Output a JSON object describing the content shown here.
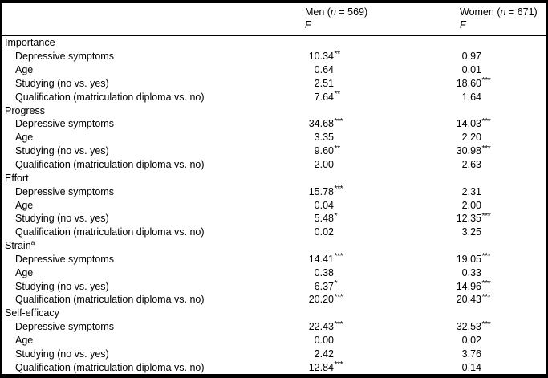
{
  "table": {
    "header": {
      "columns": [
        {
          "group_prefix": "Men (",
          "n_symbol": "n",
          "n_suffix": " = 569)",
          "stat_label": "F"
        },
        {
          "group_prefix": "Women (",
          "n_symbol": "n",
          "n_suffix": " = 671)",
          "stat_label": "F"
        }
      ]
    },
    "sections": [
      {
        "name": "Importance",
        "superscript": "",
        "rows": [
          {
            "label": "Depressive symptoms",
            "men": "10.34",
            "men_sig": "**",
            "women": "0.97",
            "women_sig": ""
          },
          {
            "label": "Age",
            "men": "0.64",
            "men_sig": "",
            "women": "0.01",
            "women_sig": ""
          },
          {
            "label": "Studying (no vs. yes)",
            "men": "2.51",
            "men_sig": "",
            "women": "18.60",
            "women_sig": "***"
          },
          {
            "label": "Qualification (matriculation diploma vs. no)",
            "men": "7.64",
            "men_sig": "**",
            "women": "1.64",
            "women_sig": ""
          }
        ]
      },
      {
        "name": "Progress",
        "superscript": "",
        "rows": [
          {
            "label": "Depressive symptoms",
            "men": "34.68",
            "men_sig": "***",
            "women": "14.03",
            "women_sig": "***"
          },
          {
            "label": "Age",
            "men": "3.35",
            "men_sig": "",
            "women": "2.20",
            "women_sig": ""
          },
          {
            "label": "Studying (no vs. yes)",
            "men": "9.60",
            "men_sig": "**",
            "women": "30.98",
            "women_sig": "***"
          },
          {
            "label": "Qualification (matriculation diploma vs. no)",
            "men": "2.00",
            "men_sig": "",
            "women": "2.63",
            "women_sig": ""
          }
        ]
      },
      {
        "name": "Effort",
        "superscript": "",
        "rows": [
          {
            "label": "Depressive symptoms",
            "men": "15.78",
            "men_sig": "***",
            "women": "2.31",
            "women_sig": ""
          },
          {
            "label": "Age",
            "men": "0.04",
            "men_sig": "",
            "women": "2.00",
            "women_sig": ""
          },
          {
            "label": "Studying (no vs. yes)",
            "men": "5.48",
            "men_sig": "*",
            "women": "12.35",
            "women_sig": "***"
          },
          {
            "label": "Qualification (matriculation diploma vs. no)",
            "men": "0.02",
            "men_sig": "",
            "women": "3.25",
            "women_sig": ""
          }
        ]
      },
      {
        "name": "Strain",
        "superscript": "a",
        "rows": [
          {
            "label": "Depressive symptoms",
            "men": "14.41",
            "men_sig": "***",
            "women": "19.05",
            "women_sig": "***"
          },
          {
            "label": "Age",
            "men": "0.38",
            "men_sig": "",
            "women": "0.33",
            "women_sig": ""
          },
          {
            "label": "Studying (no vs. yes)",
            "men": "6.37",
            "men_sig": "*",
            "women": "14.96",
            "women_sig": "***"
          },
          {
            "label": "Qualification (matriculation diploma vs. no)",
            "men": "20.20",
            "men_sig": "***",
            "women": "20.43",
            "women_sig": "***"
          }
        ]
      },
      {
        "name": "Self-efficacy",
        "superscript": "",
        "rows": [
          {
            "label": "Depressive symptoms",
            "men": "22.43",
            "men_sig": "***",
            "women": "32.53",
            "women_sig": "***"
          },
          {
            "label": "Age",
            "men": "0.00",
            "men_sig": "",
            "women": "0.02",
            "women_sig": ""
          },
          {
            "label": "Studying (no vs. yes)",
            "men": "2.42",
            "men_sig": "",
            "women": "3.76",
            "women_sig": ""
          },
          {
            "label": "Qualification (matriculation diploma vs. no)",
            "men": "12.84",
            "men_sig": "***",
            "women": "0.14",
            "women_sig": ""
          }
        ]
      }
    ]
  }
}
